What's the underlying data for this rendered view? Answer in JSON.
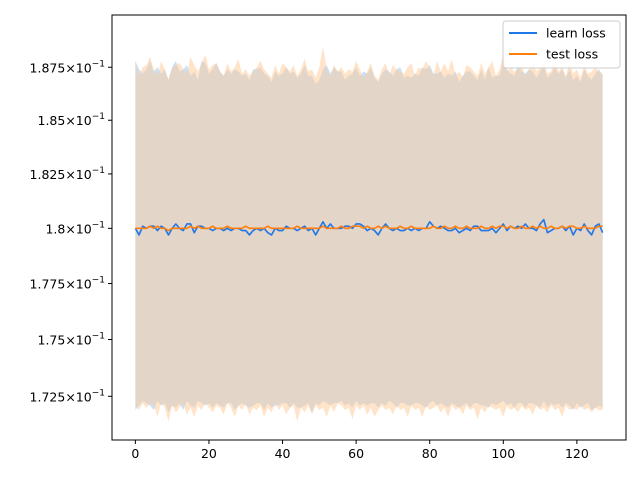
{
  "chart_data": {
    "type": "line",
    "title": "",
    "xlabel": "",
    "ylabel": "",
    "x_range": [
      0,
      127
    ],
    "xlim": [
      -6.35,
      133.35
    ],
    "ylim": [
      0.1706,
      0.19
    ],
    "y_scale": "log",
    "grid": false,
    "legend_placement": "top-right",
    "x_ticks": [
      0,
      20,
      40,
      60,
      80,
      100,
      120
    ],
    "x_tick_labels": [
      "0",
      "20",
      "40",
      "60",
      "80",
      "100",
      "120"
    ],
    "y_ticks": [
      0.1725,
      0.175,
      0.1775,
      0.18,
      0.1825,
      0.185,
      0.1875
    ],
    "y_tick_labels": [
      {
        "mantissa": "1.725",
        "times": "×",
        "base": "10",
        "exp": "−1"
      },
      {
        "mantissa": "1.75",
        "times": "×",
        "base": "10",
        "exp": "−1"
      },
      {
        "mantissa": "1.775",
        "times": "×",
        "base": "10",
        "exp": "−1"
      },
      {
        "mantissa": "1.8",
        "times": "×",
        "base": "10",
        "exp": "−1"
      },
      {
        "mantissa": "1.825",
        "times": "×",
        "base": "10",
        "exp": "−1"
      },
      {
        "mantissa": "1.85",
        "times": "×",
        "base": "10",
        "exp": "−1"
      },
      {
        "mantissa": "1.875",
        "times": "×",
        "base": "10",
        "exp": "−1"
      }
    ],
    "series": [
      {
        "name": "learn loss",
        "color": "#1f77e8",
        "band_color": "#99c8f7",
        "mean": [
          0.18,
          0.1797,
          0.1801,
          0.18,
          0.1801,
          0.1801,
          0.1799,
          0.1801,
          0.18,
          0.1797,
          0.18,
          0.1802,
          0.18,
          0.1799,
          0.1802,
          0.1802,
          0.1798,
          0.1801,
          0.1801,
          0.18,
          0.18,
          0.1799,
          0.18,
          0.18,
          0.1799,
          0.18,
          0.1799,
          0.18,
          0.18,
          0.1799,
          0.1799,
          0.1797,
          0.1799,
          0.18,
          0.1799,
          0.18,
          0.1798,
          0.1797,
          0.18,
          0.1799,
          0.1799,
          0.1801,
          0.18,
          0.18,
          0.1799,
          0.18,
          0.1801,
          0.1799,
          0.18,
          0.1797,
          0.18,
          0.1803,
          0.18,
          0.1802,
          0.18,
          0.18,
          0.18,
          0.1801,
          0.1801,
          0.18,
          0.1802,
          0.1802,
          0.1801,
          0.1799,
          0.18,
          0.1799,
          0.1797,
          0.18,
          0.1802,
          0.18,
          0.1799,
          0.18,
          0.1799,
          0.1799,
          0.18,
          0.1799,
          0.18,
          0.1799,
          0.18,
          0.18,
          0.1803,
          0.1801,
          0.18,
          0.1801,
          0.18,
          0.1799,
          0.1799,
          0.18,
          0.1798,
          0.1799,
          0.18,
          0.1799,
          0.1801,
          0.1801,
          0.1799,
          0.1799,
          0.1799,
          0.18,
          0.1798,
          0.18,
          0.1802,
          0.1799,
          0.1801,
          0.18,
          0.1801,
          0.18,
          0.1802,
          0.18,
          0.18,
          0.1799,
          0.1802,
          0.1804,
          0.1798,
          0.1799,
          0.18,
          0.18,
          0.1801,
          0.1799,
          0.1801,
          0.1797,
          0.18,
          0.1799,
          0.1802,
          0.1799,
          0.1797,
          0.1801,
          0.1802,
          0.1798
        ],
        "upper": [
          0.1878,
          0.1874,
          0.1872,
          0.1874,
          0.1878,
          0.1873,
          0.1875,
          0.1872,
          0.1874,
          0.1869,
          0.1875,
          0.1878,
          0.1873,
          0.1874,
          0.1876,
          0.1871,
          0.1873,
          0.1869,
          0.1878,
          0.1877,
          0.1872,
          0.1874,
          0.1877,
          0.1873,
          0.1871,
          0.1874,
          0.1872,
          0.1874,
          0.1873,
          0.1871,
          0.1872,
          0.1869,
          0.1874,
          0.1874,
          0.1875,
          0.1872,
          0.1871,
          0.1868,
          0.1873,
          0.1871,
          0.1872,
          0.1875,
          0.1872,
          0.1873,
          0.187,
          0.1872,
          0.1876,
          0.1871,
          0.1871,
          0.1867,
          0.1869,
          0.1874,
          0.1876,
          0.1872,
          0.1875,
          0.1873,
          0.1873,
          0.1869,
          0.1871,
          0.1872,
          0.1875,
          0.1871,
          0.1873,
          0.1872,
          0.1875,
          0.187,
          0.1868,
          0.1872,
          0.1874,
          0.1873,
          0.1871,
          0.1874,
          0.1875,
          0.187,
          0.1871,
          0.187,
          0.1872,
          0.1871,
          0.1875,
          0.1874,
          0.1876,
          0.1872,
          0.1872,
          0.1873,
          0.187,
          0.1872,
          0.1871,
          0.1873,
          0.1868,
          0.1871,
          0.1873,
          0.1873,
          0.1871,
          0.1869,
          0.1874,
          0.1869,
          0.1875,
          0.187,
          0.1871,
          0.1871,
          0.1878,
          0.1874,
          0.1872,
          0.1871,
          0.1876,
          0.1873,
          0.1872,
          0.1874,
          0.1873,
          0.187,
          0.1873,
          0.1876,
          0.187,
          0.1872,
          0.1875,
          0.1872,
          0.1874,
          0.187,
          0.1874,
          0.1869,
          0.1871,
          0.1868,
          0.1874,
          0.1871,
          0.1869,
          0.1872,
          0.1874,
          0.1871
        ],
        "lower": [
          0.1719,
          0.1721,
          0.1723,
          0.1722,
          0.1721,
          0.1719,
          0.1723,
          0.1721,
          0.1722,
          0.1718,
          0.1721,
          0.172,
          0.1722,
          0.1719,
          0.1723,
          0.1721,
          0.172,
          0.1723,
          0.1722,
          0.1721,
          0.1722,
          0.172,
          0.1722,
          0.1721,
          0.172,
          0.1722,
          0.1722,
          0.1719,
          0.1721,
          0.1722,
          0.1721,
          0.172,
          0.1721,
          0.1722,
          0.1722,
          0.1719,
          0.1722,
          0.172,
          0.1721,
          0.1721,
          0.1722,
          0.1722,
          0.172,
          0.1722,
          0.172,
          0.172,
          0.1721,
          0.1722,
          0.1718,
          0.1722,
          0.1721,
          0.1723,
          0.1722,
          0.1721,
          0.1722,
          0.1722,
          0.1723,
          0.1721,
          0.1722,
          0.172,
          0.1723,
          0.1721,
          0.1722,
          0.1721,
          0.1722,
          0.1722,
          0.172,
          0.1722,
          0.1721,
          0.1723,
          0.1722,
          0.172,
          0.1722,
          0.1722,
          0.1721,
          0.1721,
          0.1722,
          0.1722,
          0.1721,
          0.172,
          0.1722,
          0.1723,
          0.1721,
          0.1722,
          0.1721,
          0.172,
          0.1722,
          0.1721,
          0.172,
          0.1721,
          0.1722,
          0.172,
          0.1722,
          0.1722,
          0.1721,
          0.1721,
          0.172,
          0.1722,
          0.1721,
          0.1722,
          0.1723,
          0.1721,
          0.1722,
          0.172,
          0.1722,
          0.1722,
          0.172,
          0.1722,
          0.1722,
          0.1721,
          0.172,
          0.1723,
          0.172,
          0.1722,
          0.1721,
          0.1722,
          0.172,
          0.1722,
          0.1721,
          0.1719,
          0.1722,
          0.172,
          0.1721,
          0.1722,
          0.1719,
          0.172,
          0.1721,
          0.172
        ]
      },
      {
        "name": "test loss",
        "color": "#ff7f0e",
        "band_color": "#ffc995",
        "mean": [
          0.18,
          0.18,
          0.18,
          0.18,
          0.1801,
          0.18,
          0.1801,
          0.18,
          0.18,
          0.1799,
          0.18,
          0.18,
          0.18,
          0.18,
          0.18,
          0.1801,
          0.18,
          0.1801,
          0.18,
          0.18,
          0.18,
          0.1801,
          0.18,
          0.18,
          0.18,
          0.1801,
          0.18,
          0.18,
          0.18,
          0.18,
          0.1801,
          0.18,
          0.18,
          0.18,
          0.18,
          0.18,
          0.1801,
          0.18,
          0.18,
          0.18,
          0.18,
          0.18,
          0.18,
          0.18,
          0.1801,
          0.18,
          0.18,
          0.18,
          0.18,
          0.18,
          0.18,
          0.1801,
          0.18,
          0.18,
          0.18,
          0.18,
          0.1801,
          0.18,
          0.18,
          0.1801,
          0.1801,
          0.1801,
          0.18,
          0.1801,
          0.18,
          0.18,
          0.1801,
          0.18,
          0.1801,
          0.18,
          0.18,
          0.18,
          0.1801,
          0.18,
          0.18,
          0.1801,
          0.18,
          0.18,
          0.18,
          0.18,
          0.18,
          0.1801,
          0.18,
          0.18,
          0.1801,
          0.18,
          0.18,
          0.1801,
          0.18,
          0.18,
          0.1801,
          0.18,
          0.18,
          0.18,
          0.1801,
          0.18,
          0.18,
          0.1801,
          0.18,
          0.1801,
          0.1801,
          0.18,
          0.1801,
          0.18,
          0.18,
          0.1801,
          0.18,
          0.18,
          0.1801,
          0.18,
          0.1801,
          0.18,
          0.18,
          0.1801,
          0.18,
          0.18,
          0.1801,
          0.18,
          0.1801,
          0.1801,
          0.18,
          0.18,
          0.1801,
          0.18,
          0.18,
          0.18,
          0.1801,
          0.1801
        ],
        "upper": [
          0.1878,
          0.1871,
          0.1875,
          0.1876,
          0.188,
          0.1874,
          0.1871,
          0.1878,
          0.1874,
          0.1869,
          0.1875,
          0.1876,
          0.1877,
          0.1874,
          0.1872,
          0.188,
          0.1876,
          0.1873,
          0.1877,
          0.1881,
          0.1874,
          0.1876,
          0.1877,
          0.1873,
          0.1871,
          0.1877,
          0.1873,
          0.1875,
          0.1879,
          0.1872,
          0.1874,
          0.1871,
          0.1873,
          0.1875,
          0.1878,
          0.1874,
          0.1872,
          0.187,
          0.1876,
          0.1872,
          0.1877,
          0.1875,
          0.1873,
          0.1876,
          0.1871,
          0.1874,
          0.1879,
          0.1873,
          0.1874,
          0.187,
          0.1875,
          0.1885,
          0.1874,
          0.1871,
          0.1876,
          0.1873,
          0.1875,
          0.1872,
          0.1874,
          0.1873,
          0.1878,
          0.1874,
          0.187,
          0.1873,
          0.1877,
          0.1871,
          0.1869,
          0.1874,
          0.1877,
          0.1871,
          0.1876,
          0.1874,
          0.1873,
          0.1872,
          0.1875,
          0.1877,
          0.1871,
          0.1875,
          0.1874,
          0.1878,
          0.1875,
          0.1871,
          0.1878,
          0.1873,
          0.1877,
          0.1873,
          0.1879,
          0.1871,
          0.1873,
          0.187,
          0.1876,
          0.1875,
          0.1873,
          0.1871,
          0.1877,
          0.1872,
          0.1875,
          0.1878,
          0.1871,
          0.1874,
          0.1882,
          0.1873,
          0.1875,
          0.1873,
          0.1874,
          0.1876,
          0.1871,
          0.1874,
          0.1877,
          0.1873,
          0.1875,
          0.1878,
          0.1872,
          0.1873,
          0.188,
          0.1873,
          0.1875,
          0.1871,
          0.1877,
          0.1872,
          0.1874,
          0.187,
          0.1876,
          0.1872,
          0.1873,
          0.1875,
          0.1873,
          0.1872
        ],
        "lower": [
          0.1721,
          0.1719,
          0.1722,
          0.172,
          0.1722,
          0.1721,
          0.1716,
          0.1722,
          0.172,
          0.1714,
          0.1721,
          0.1718,
          0.172,
          0.1722,
          0.1717,
          0.172,
          0.1716,
          0.1721,
          0.1719,
          0.1722,
          0.172,
          0.1718,
          0.1721,
          0.172,
          0.1717,
          0.1722,
          0.172,
          0.1716,
          0.1721,
          0.1719,
          0.1722,
          0.1717,
          0.172,
          0.1719,
          0.1721,
          0.1716,
          0.172,
          0.1718,
          0.1722,
          0.1719,
          0.1721,
          0.1717,
          0.172,
          0.1721,
          0.1714,
          0.172,
          0.1718,
          0.1721,
          0.1717,
          0.1721,
          0.1719,
          0.172,
          0.1716,
          0.1721,
          0.1718,
          0.1722,
          0.1721,
          0.1719,
          0.172,
          0.1715,
          0.1721,
          0.1719,
          0.1721,
          0.1717,
          0.172,
          0.1716,
          0.1719,
          0.1721,
          0.1719,
          0.172,
          0.1717,
          0.1721,
          0.1719,
          0.172,
          0.1716,
          0.1721,
          0.1719,
          0.172,
          0.1716,
          0.1721,
          0.1719,
          0.172,
          0.1721,
          0.1718,
          0.172,
          0.1716,
          0.1721,
          0.1719,
          0.172,
          0.1717,
          0.1721,
          0.1719,
          0.172,
          0.1715,
          0.172,
          0.1718,
          0.1721,
          0.172,
          0.1719,
          0.172,
          0.1716,
          0.1721,
          0.1719,
          0.172,
          0.1718,
          0.1721,
          0.1719,
          0.172,
          0.1717,
          0.1721,
          0.1719,
          0.172,
          0.1718,
          0.1721,
          0.1719,
          0.172,
          0.1716,
          0.1721,
          0.1719,
          0.172,
          0.1719,
          0.1721,
          0.1719,
          0.172,
          0.1718,
          0.172,
          0.1719,
          0.1719
        ]
      }
    ]
  }
}
